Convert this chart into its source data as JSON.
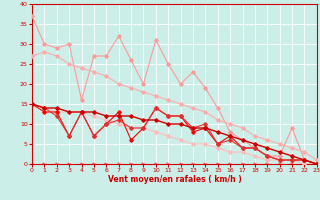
{
  "title": "",
  "xlabel": "Vent moyen/en rafales ( km/h )",
  "xlim": [
    0,
    23
  ],
  "ylim": [
    0,
    40
  ],
  "bg_color": "#cceee8",
  "grid_color": "#ffffff",
  "axis_color": "#cc0000",
  "lines": [
    {
      "x": [
        0,
        1,
        2,
        3,
        4,
        5,
        6,
        7,
        8,
        9,
        10,
        11,
        12,
        13,
        14,
        15,
        16,
        17,
        18,
        19,
        20,
        21,
        22,
        23
      ],
      "y": [
        37,
        30,
        29,
        30,
        16,
        27,
        27,
        32,
        26,
        20,
        31,
        25,
        20,
        23,
        19,
        14,
        8,
        6,
        4,
        2,
        2,
        9,
        1,
        0
      ],
      "color": "#ff9999",
      "lw": 0.8,
      "marker": "D",
      "ms": 1.8,
      "zorder": 3
    },
    {
      "x": [
        0,
        1,
        2,
        3,
        4,
        5,
        6,
        7,
        8,
        9,
        10,
        11,
        12,
        13,
        14,
        15,
        16,
        17,
        18,
        19,
        20,
        21,
        22,
        23
      ],
      "y": [
        27,
        28,
        27,
        25,
        24,
        23,
        22,
        20,
        19,
        18,
        17,
        16,
        15,
        14,
        13,
        11,
        10,
        9,
        7,
        6,
        5,
        4,
        3,
        1
      ],
      "color": "#ffaaaa",
      "lw": 0.8,
      "marker": "D",
      "ms": 1.8,
      "zorder": 3
    },
    {
      "x": [
        0,
        1,
        2,
        3,
        4,
        5,
        6,
        7,
        8,
        9,
        10,
        11,
        12,
        13,
        14,
        15,
        16,
        17,
        18,
        19,
        20,
        21,
        22,
        23
      ],
      "y": [
        15,
        14,
        13,
        13,
        13,
        12,
        11,
        10,
        9,
        9,
        8,
        7,
        6,
        5,
        5,
        4,
        3,
        3,
        2,
        1,
        1,
        1,
        0,
        0
      ],
      "color": "#ffbbbb",
      "lw": 0.8,
      "marker": "D",
      "ms": 1.8,
      "zorder": 3
    },
    {
      "x": [
        0,
        1,
        2,
        3,
        4,
        5,
        6,
        7,
        8,
        9,
        10,
        11,
        12,
        13,
        14,
        15,
        16,
        17,
        18,
        19,
        20,
        21,
        22,
        23
      ],
      "y": [
        15,
        14,
        14,
        13,
        13,
        13,
        12,
        12,
        12,
        11,
        11,
        10,
        10,
        9,
        9,
        8,
        7,
        6,
        5,
        4,
        3,
        2,
        1,
        0
      ],
      "color": "#cc0000",
      "lw": 1.0,
      "marker": "D",
      "ms": 1.8,
      "zorder": 5
    },
    {
      "x": [
        0,
        1,
        2,
        3,
        4,
        5,
        6,
        7,
        8,
        9,
        10,
        11,
        12,
        13,
        14,
        15,
        16,
        17,
        18,
        19,
        20,
        21,
        22,
        23
      ],
      "y": [
        15,
        13,
        13,
        7,
        13,
        7,
        10,
        13,
        6,
        9,
        14,
        12,
        12,
        8,
        9,
        5,
        7,
        4,
        4,
        2,
        1,
        1,
        1,
        0
      ],
      "color": "#ff0000",
      "lw": 0.8,
      "marker": "D",
      "ms": 1.8,
      "zorder": 4
    },
    {
      "x": [
        0,
        1,
        2,
        3,
        4,
        5,
        6,
        7,
        8,
        9,
        10,
        11,
        12,
        13,
        14,
        15,
        16,
        17,
        18,
        19,
        20,
        21,
        22,
        23
      ],
      "y": [
        15,
        14,
        12,
        7,
        13,
        7,
        10,
        11,
        9,
        9,
        14,
        12,
        12,
        9,
        10,
        5,
        6,
        4,
        4,
        2,
        1,
        1,
        1,
        0
      ],
      "color": "#dd3333",
      "lw": 0.8,
      "marker": "D",
      "ms": 1.8,
      "zorder": 4
    },
    {
      "x": [
        0,
        1,
        2,
        3,
        4,
        5,
        6,
        7,
        8,
        9,
        10,
        11,
        12,
        13,
        14,
        15,
        16,
        17,
        18,
        19,
        20,
        21,
        22,
        23
      ],
      "y": [
        0,
        0,
        0,
        0,
        0,
        0,
        0,
        0,
        0,
        0,
        0,
        0,
        0,
        0,
        0,
        0,
        0,
        0,
        0,
        0,
        0,
        0,
        0,
        0
      ],
      "color": "#ff6666",
      "lw": 0.5,
      "marker": ">",
      "ms": 2.2,
      "zorder": 2
    }
  ]
}
